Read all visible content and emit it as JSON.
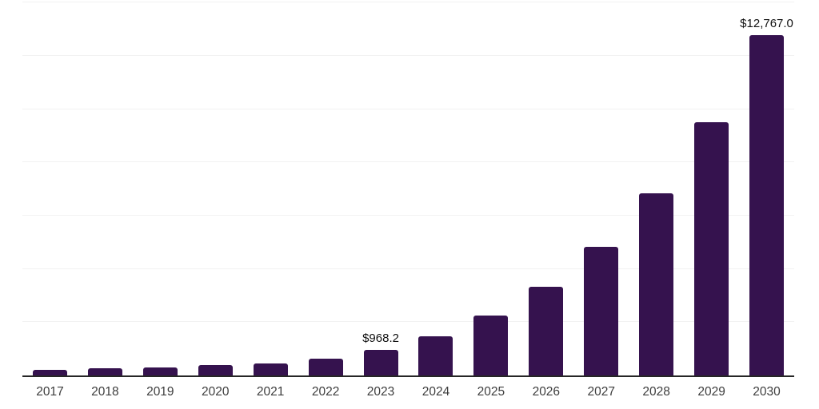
{
  "chart_data": {
    "type": "bar",
    "title": "",
    "xlabel": "",
    "ylabel": "",
    "categories": [
      "2017",
      "2018",
      "2019",
      "2020",
      "2021",
      "2022",
      "2023",
      "2024",
      "2025",
      "2026",
      "2027",
      "2028",
      "2029",
      "2030"
    ],
    "values": [
      200,
      280,
      300,
      380,
      460,
      630,
      968.2,
      1470,
      2250,
      3320,
      4820,
      6830,
      9500,
      12767.0
    ],
    "annotations": [
      {
        "category": "2023",
        "text": "$968.2"
      },
      {
        "category": "2030",
        "text": "$12,767.0"
      }
    ],
    "ylim": [
      0,
      14100
    ],
    "gridline_interval": 2000,
    "grid": true,
    "y_axis_tick_labels_visible": false,
    "legend_position": "none",
    "colors": {
      "bar": "#35124e",
      "axis_line": "#262626",
      "gridline": "#f2f2f2",
      "tick_label": "#3d3d3d",
      "value_label": "#111111"
    }
  }
}
